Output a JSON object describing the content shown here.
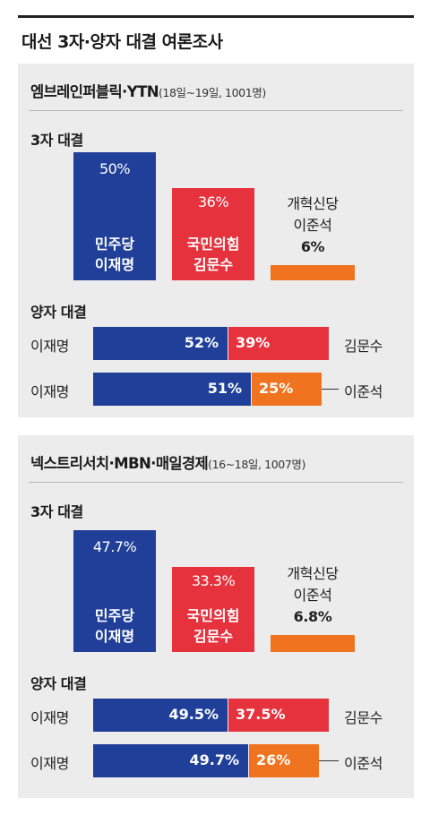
{
  "title": "대선 3자·양자 대결 여론조사",
  "colors": {
    "blue": "#1f3f99",
    "red": "#e5323d",
    "orange": "#f07420"
  },
  "chart_data": [
    {
      "type": "bar",
      "poll_name": "엠브레인퍼블릭·YTN",
      "poll_detail": "(18일~19일, 1001명)",
      "three_way": {
        "label": "3자 대결",
        "ylim": [
          0,
          60
        ],
        "bars": [
          {
            "party": "민주당",
            "candidate": "이재명",
            "value": 50,
            "value_label": "50%",
            "color": "#1f3f99"
          },
          {
            "party": "국민의힘",
            "candidate": "김문수",
            "value": 36,
            "value_label": "36%",
            "color": "#e5323d"
          },
          {
            "party": "개혁신당",
            "candidate": "이준석",
            "value": 6,
            "value_label": "6%",
            "color": "#f07420"
          }
        ]
      },
      "head_to_head": {
        "label": "양자 대결",
        "rows": [
          {
            "left": "이재명",
            "left_value": 52,
            "left_label": "52%",
            "left_color": "#1f3f99",
            "right": "김문수",
            "right_value": 39,
            "right_label": "39%",
            "right_color": "#e5323d"
          },
          {
            "left": "이재명",
            "left_value": 51,
            "left_label": "51%",
            "left_color": "#1f3f99",
            "right": "이준석",
            "right_value": 25,
            "right_label": "25%",
            "right_color": "#f07420"
          }
        ]
      }
    },
    {
      "type": "bar",
      "poll_name": "넥스트리서치·MBN·매일경제",
      "poll_detail": "(16~18일, 1007명)",
      "three_way": {
        "label": "3자 대결",
        "ylim": [
          0,
          60
        ],
        "bars": [
          {
            "party": "민주당",
            "candidate": "이재명",
            "value": 47.7,
            "value_label": "47.7%",
            "color": "#1f3f99"
          },
          {
            "party": "국민의힘",
            "candidate": "김문수",
            "value": 33.3,
            "value_label": "33.3%",
            "color": "#e5323d"
          },
          {
            "party": "개혁신당",
            "candidate": "이준석",
            "value": 6.8,
            "value_label": "6.8%",
            "color": "#f07420"
          }
        ]
      },
      "head_to_head": {
        "label": "양자 대결",
        "rows": [
          {
            "left": "이재명",
            "left_value": 49.5,
            "left_label": "49.5%",
            "left_color": "#1f3f99",
            "right": "김문수",
            "right_value": 37.5,
            "right_label": "37.5%",
            "right_color": "#e5323d"
          },
          {
            "left": "이재명",
            "left_value": 49.7,
            "left_label": "49.7%",
            "left_color": "#1f3f99",
            "right": "이준석",
            "right_value": 26,
            "right_label": "26%",
            "right_color": "#f07420"
          }
        ]
      }
    }
  ]
}
